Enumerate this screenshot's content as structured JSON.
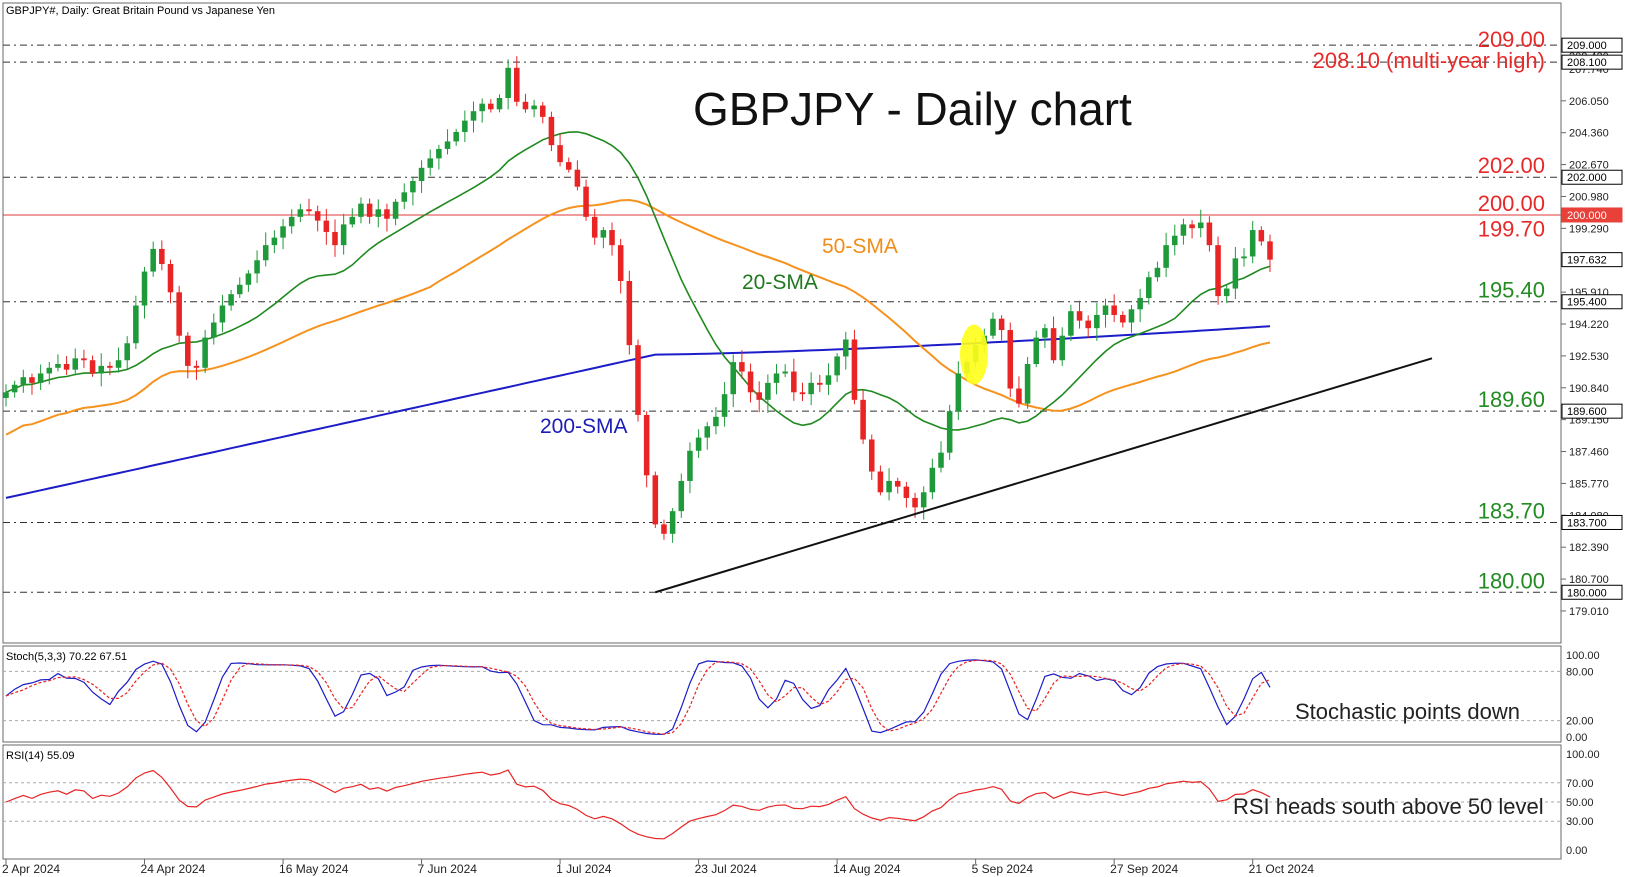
{
  "header": {
    "symbol_text": "GBPJPY#, Daily:  Great Britain Pound vs Japanese Yen"
  },
  "chart_data": [
    {
      "type": "candlestick",
      "title": "GBPJPY - Daily chart",
      "ylim": [
        178.0,
        210.6
      ],
      "x_labels": [
        "2 Apr 2024",
        "24 Apr 2024",
        "16 May 2024",
        "7 Jun 2024",
        "1 Jul 2024",
        "23 Jul 2024",
        "14 Aug 2024",
        "5 Sep 2024",
        "27 Sep 2024",
        "21 Oct 2024"
      ],
      "x_label_bars": [
        0,
        16,
        32,
        48,
        64,
        80,
        96,
        112,
        128,
        144
      ],
      "y_ticks": [
        "208.420",
        "207.740",
        "206.050",
        "204.360",
        "202.670",
        "200.980",
        "199.290",
        "195.910",
        "194.220",
        "192.530",
        "190.840",
        "189.150",
        "187.460",
        "185.770",
        "184.080",
        "182.390",
        "180.700",
        "179.010"
      ],
      "price_tags": [
        {
          "label": "209.000",
          "value": 209.0,
          "style": "dash"
        },
        {
          "label": "208.100",
          "value": 208.1,
          "style": "dash"
        },
        {
          "label": "202.000",
          "value": 202.0,
          "style": "dash"
        },
        {
          "label": "200.000",
          "value": 200.0,
          "style": "red"
        },
        {
          "label": "197.632",
          "value": 197.632,
          "style": "current"
        },
        {
          "label": "195.400",
          "value": 195.4,
          "style": "dash"
        },
        {
          "label": "189.600",
          "value": 189.6,
          "style": "dash"
        },
        {
          "label": "183.700",
          "value": 183.7,
          "style": "dash"
        },
        {
          "label": "180.000",
          "value": 180.0,
          "style": "dash"
        }
      ],
      "level_annotations": [
        {
          "text": "209.00",
          "value": 209.0
        },
        {
          "text": "208.10 (multi-year high)",
          "value": 208.1
        },
        {
          "text": "202.00",
          "value": 202.0
        },
        {
          "text": "200.00",
          "value": 200.0
        },
        {
          "text": "199.70",
          "value": 199.7
        },
        {
          "text": "195.40",
          "value": 195.4
        },
        {
          "text": "189.60",
          "value": 189.6
        },
        {
          "text": "183.70",
          "value": 183.7
        },
        {
          "text": "180.00",
          "value": 180.0
        }
      ],
      "series_labels": {
        "sma20": "20-SMA",
        "sma50": "50-SMA",
        "sma200": "200-SMA"
      },
      "close": [
        190.6,
        191.0,
        191.4,
        191.1,
        191.6,
        191.9,
        192.1,
        191.8,
        192.4,
        192.3,
        191.6,
        192.0,
        191.9,
        192.3,
        193.2,
        195.2,
        197.0,
        198.2,
        197.4,
        195.9,
        193.6,
        192.0,
        191.9,
        193.5,
        194.3,
        195.2,
        195.8,
        196.3,
        196.9,
        197.6,
        198.4,
        198.8,
        199.4,
        199.9,
        200.3,
        200.2,
        199.7,
        199.1,
        198.4,
        199.5,
        199.9,
        200.6,
        199.9,
        200.3,
        199.8,
        200.7,
        201.2,
        201.8,
        202.5,
        203.0,
        203.5,
        203.9,
        204.4,
        205.0,
        205.5,
        205.9,
        205.6,
        206.2,
        207.8,
        206.0,
        205.6,
        205.8,
        205.2,
        203.7,
        202.8,
        202.4,
        201.5,
        199.9,
        198.8,
        199.2,
        198.4,
        196.5,
        193.1,
        189.4,
        186.2,
        183.6,
        183.1,
        184.3,
        185.9,
        187.5,
        188.2,
        188.8,
        189.3,
        190.5,
        192.2,
        191.7,
        190.6,
        190.2,
        191.1,
        191.6,
        191.7,
        190.6,
        190.5,
        191.1,
        191.0,
        191.5,
        192.5,
        193.4,
        190.2,
        188.1,
        186.4,
        185.3,
        185.9,
        185.6,
        185.0,
        184.5,
        185.3,
        186.6,
        187.4,
        189.6,
        191.6,
        192.2,
        193.1,
        193.6,
        194.5,
        193.9,
        190.8,
        190.0,
        192.1,
        193.5,
        194.0,
        192.3,
        193.6,
        194.9,
        194.4,
        194.0,
        194.7,
        195.2,
        194.7,
        194.3,
        195.0,
        195.6,
        196.7,
        197.2,
        198.4,
        198.9,
        199.5,
        199.3,
        199.6,
        198.4,
        195.7,
        196.1,
        197.7,
        197.8,
        199.2,
        198.6,
        197.632
      ],
      "stoch_panel": {
        "label": "Stoch(5,3,3) 70.22 67.51",
        "yticks": [
          "100.00",
          "80.00",
          "20.00",
          "0.00"
        ],
        "annotation": "Stochastic points down"
      },
      "rsi_panel": {
        "label": "RSI(14) 55.09",
        "yticks": [
          "100.00",
          "70.00",
          "50.00",
          "30.00",
          "0.00"
        ],
        "annotation": "RSI heads south above 50 level"
      }
    }
  ]
}
